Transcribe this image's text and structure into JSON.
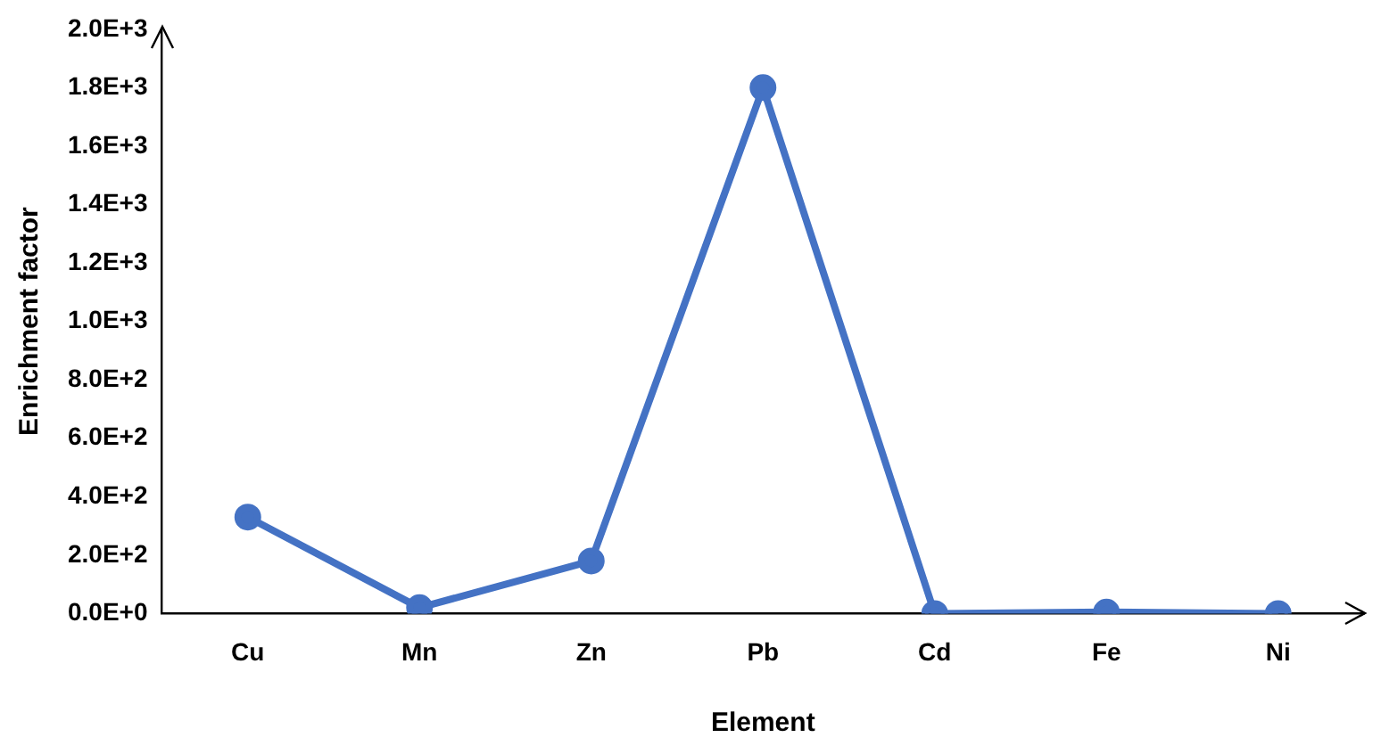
{
  "chart_data": {
    "type": "line",
    "xlabel": "Element",
    "ylabel": "Enrichment factor",
    "categories": [
      "Cu",
      "Mn",
      "Zn",
      "Pb",
      "Cd",
      "Fe",
      "Ni"
    ],
    "series": [
      {
        "color": "#4472c4",
        "values": [
          330,
          20,
          180,
          1800,
          0,
          5,
          0
        ]
      }
    ],
    "ylim": [
      0,
      2000
    ],
    "yticks": [
      {
        "value": 0,
        "label": "0.0E+0"
      },
      {
        "value": 200,
        "label": "2.0E+2"
      },
      {
        "value": 400,
        "label": "4.0E+2"
      },
      {
        "value": 600,
        "label": "6.0E+2"
      },
      {
        "value": 800,
        "label": "8.0E+2"
      },
      {
        "value": 1000,
        "label": "1.0E+3"
      },
      {
        "value": 1200,
        "label": "1.2E+3"
      },
      {
        "value": 1400,
        "label": "1.4E+3"
      },
      {
        "value": 1600,
        "label": "1.6E+3"
      },
      {
        "value": 1800,
        "label": "1.8E+3"
      },
      {
        "value": 2000,
        "label": "2.0E+3"
      }
    ],
    "grid": false,
    "legend": false,
    "marker": "circle",
    "line_style": "solid"
  }
}
